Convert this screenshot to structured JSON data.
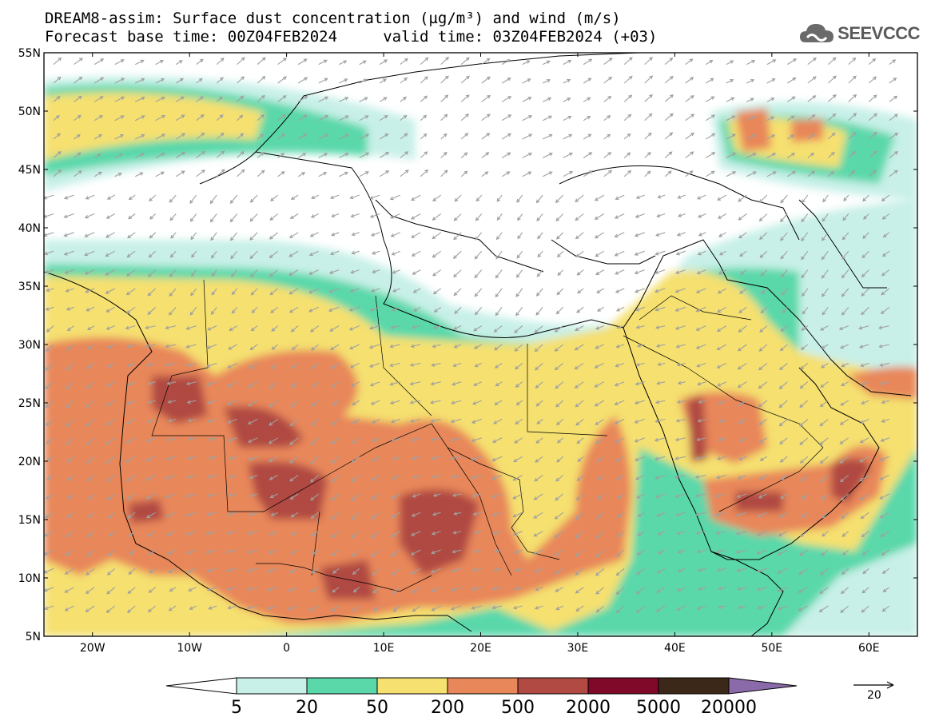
{
  "header": {
    "title_line1": "DREAM8-assim: Surface dust concentration (µg/m³) and wind (m/s)",
    "title_line2": "Forecast base time: 00Z04FEB2024     valid time: 03Z04FEB2024 (+03)"
  },
  "brand": {
    "name": "SEEVCCC",
    "icon": "cloud-logo-icon",
    "color": "#6a6a6a"
  },
  "map": {
    "projection": "lat-lon",
    "lon_range": [
      -25,
      65
    ],
    "lat_range": [
      5,
      55
    ],
    "lat_ticks": [
      "55N",
      "50N",
      "45N",
      "40N",
      "35N",
      "30N",
      "25N",
      "20N",
      "15N",
      "10N",
      "5N"
    ],
    "lon_ticks": [
      "20W",
      "10W",
      "0",
      "10E",
      "20E",
      "30E",
      "40E",
      "50E",
      "60E"
    ],
    "wind_arrow_color": "#a0a0a0",
    "coast_color": "#000000"
  },
  "colorbar": {
    "labels": [
      "5",
      "20",
      "50",
      "200",
      "500",
      "2000",
      "5000",
      "20000"
    ],
    "colors": [
      "#c8f0e8",
      "#5ad8aa",
      "#f5e070",
      "#e8875a",
      "#b04a42",
      "#800828",
      "#3c2818"
    ],
    "low_extend_color": "#ffffff",
    "high_extend_color": "#8a6aa8"
  },
  "wind_reference": {
    "label": "20"
  }
}
